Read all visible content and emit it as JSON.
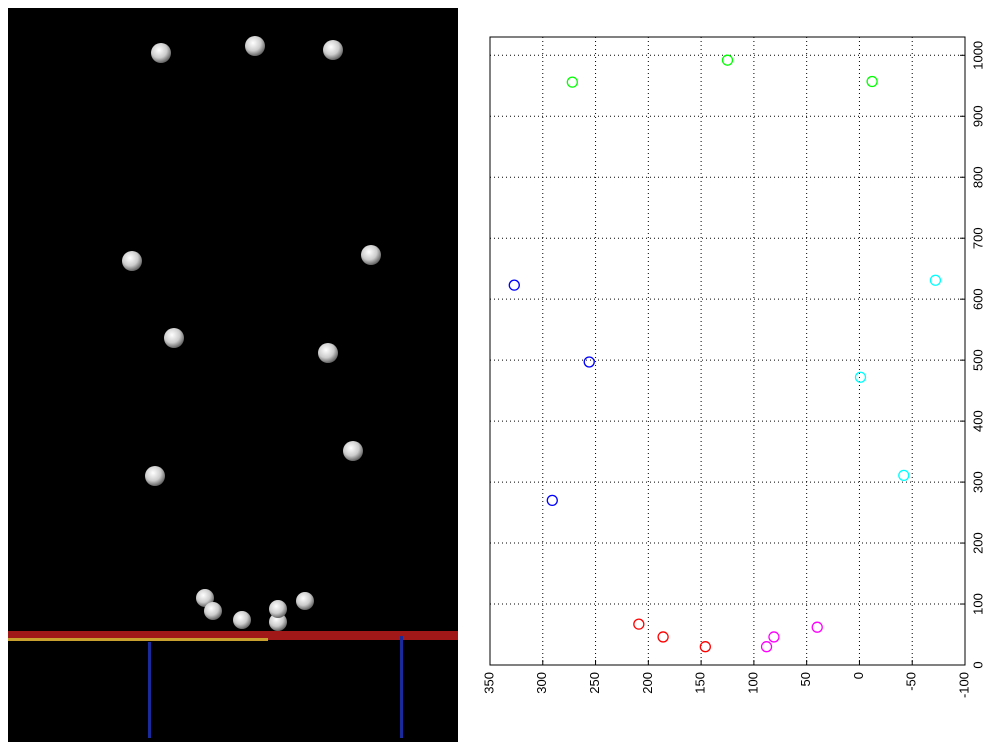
{
  "chart_data": {
    "type": "scatter",
    "xlim": [
      350,
      -100
    ],
    "xticks": [
      350,
      300,
      250,
      200,
      150,
      100,
      50,
      0,
      -50,
      -100
    ],
    "ylim": [
      0,
      1030
    ],
    "yticks": [
      0,
      100,
      200,
      300,
      400,
      500,
      600,
      700,
      800,
      900,
      1000
    ],
    "grid": true,
    "marker": "circle",
    "series": [
      {
        "color": "#00ff00",
        "x": [
          272,
          125,
          -12
        ],
        "values": [
          956,
          992,
          957
        ]
      },
      {
        "color": "#0000ff",
        "x": [
          327,
          256,
          291
        ],
        "values": [
          623,
          497,
          270
        ]
      },
      {
        "color": "#00ffff",
        "x": [
          -72,
          -1,
          -42
        ],
        "values": [
          631,
          472,
          311
        ]
      },
      {
        "color": "#ff0000",
        "x": [
          209,
          186,
          146
        ],
        "values": [
          67,
          46,
          30
        ]
      },
      {
        "color": "#ff00ff",
        "x": [
          88,
          81,
          40
        ],
        "values": [
          30,
          46,
          62
        ]
      }
    ]
  }
}
